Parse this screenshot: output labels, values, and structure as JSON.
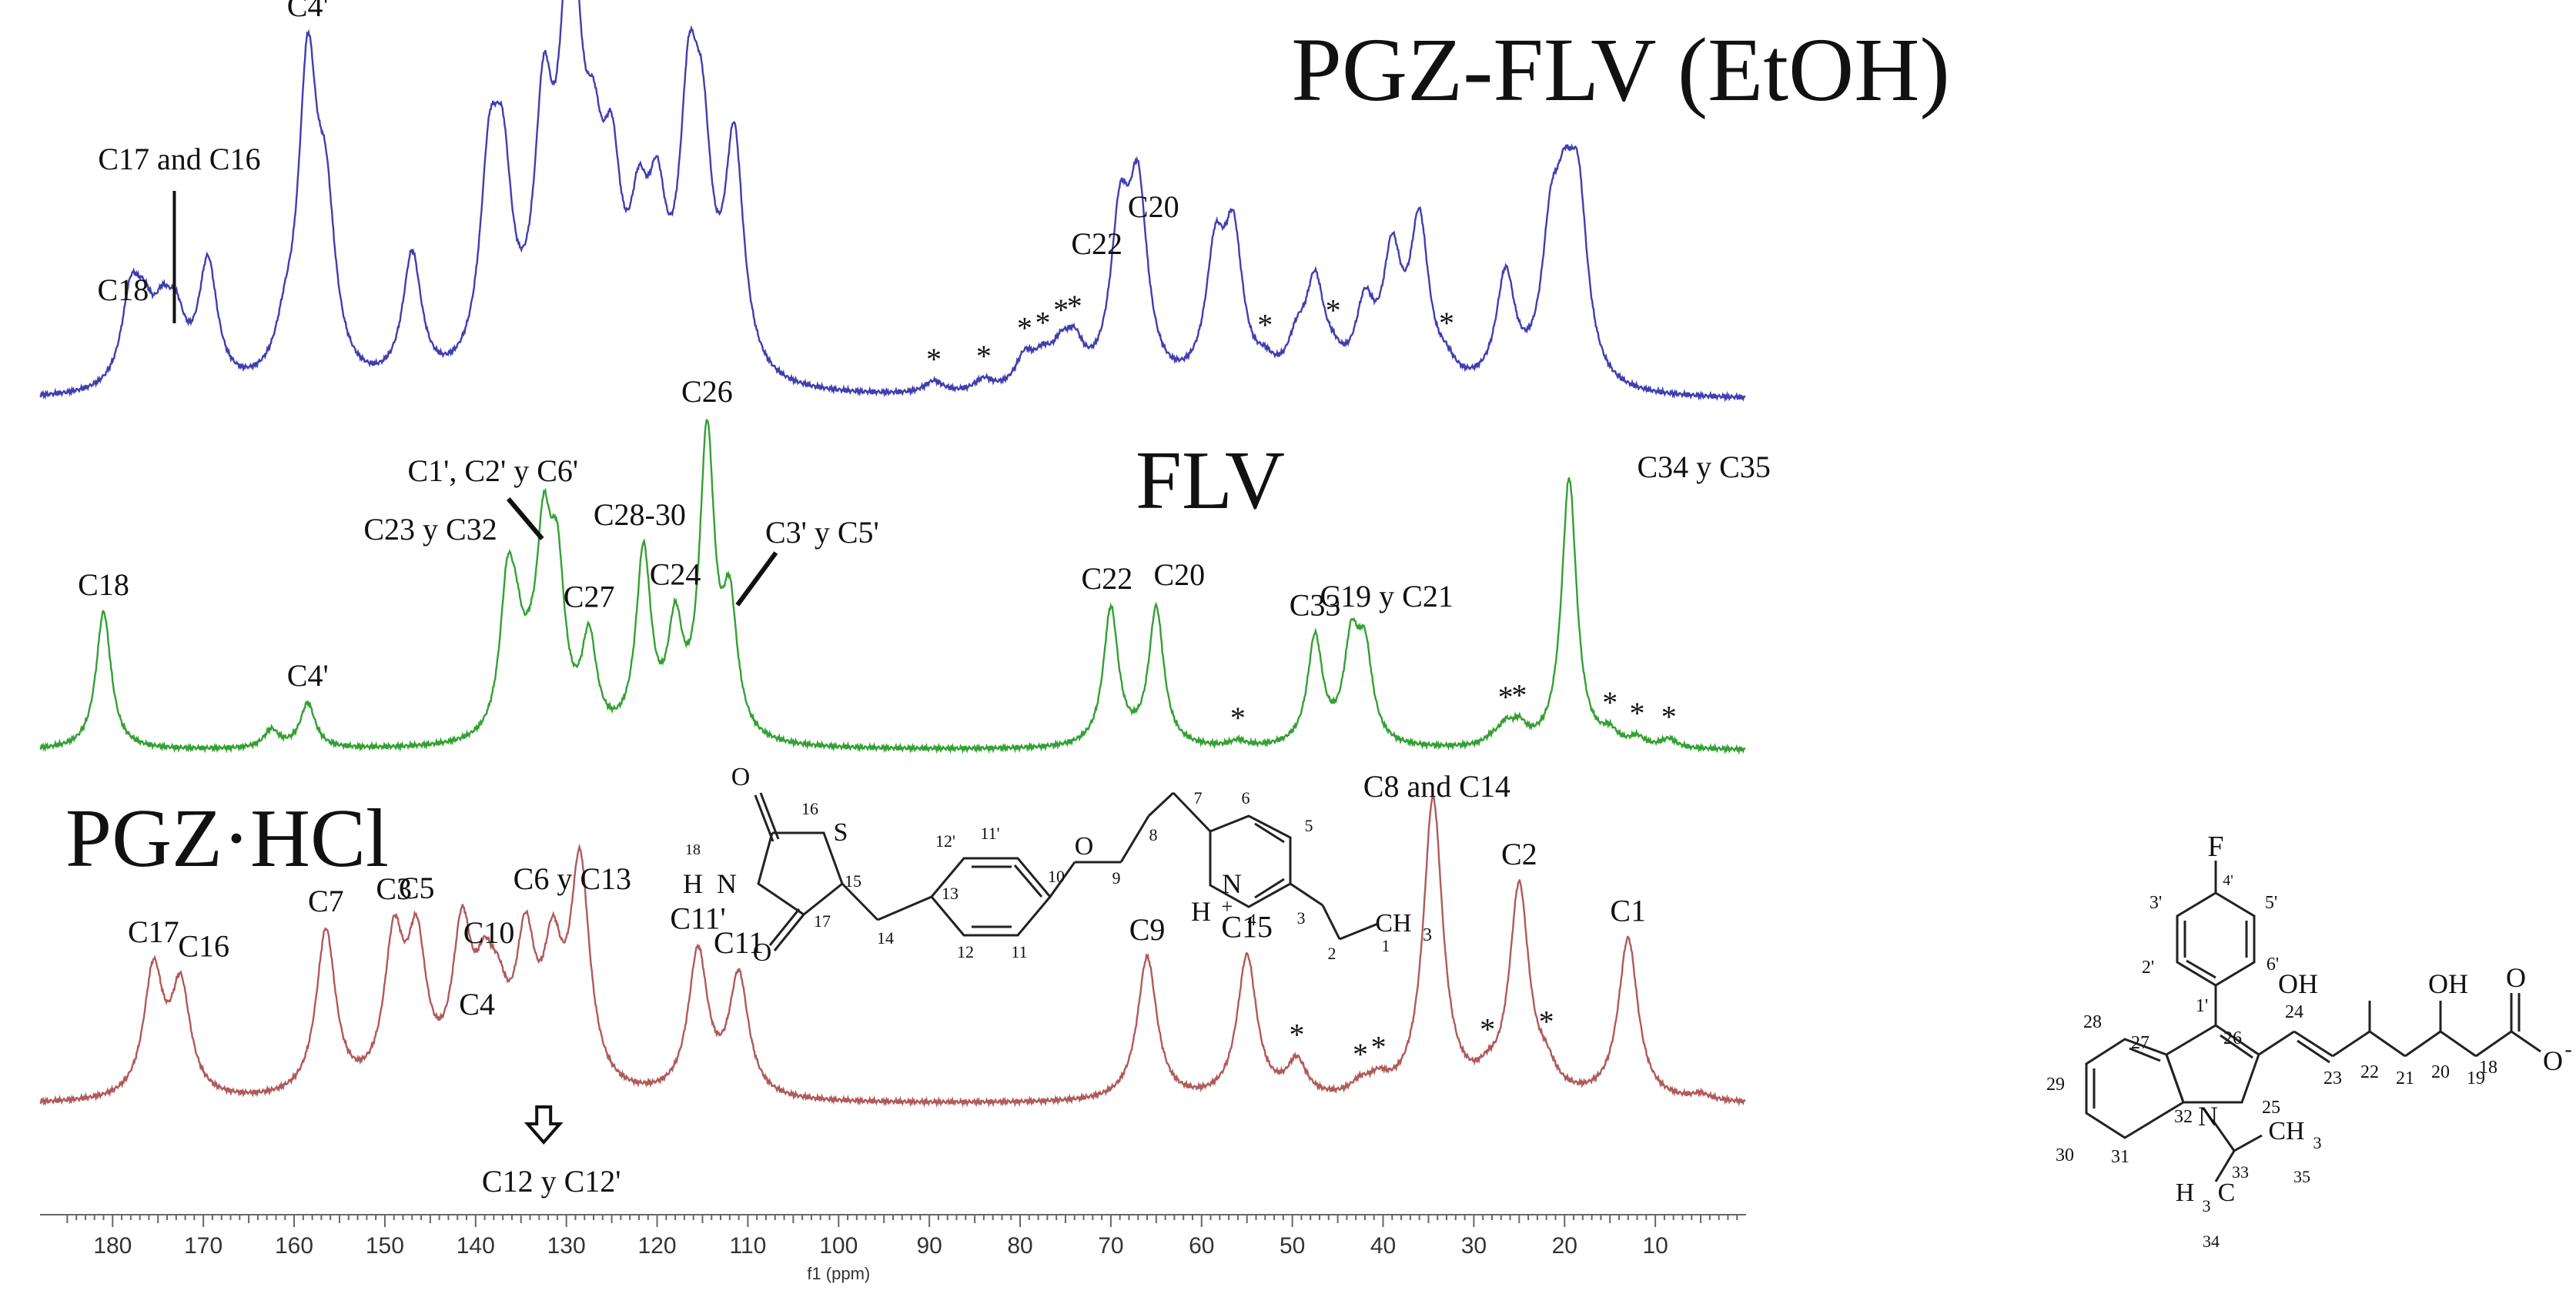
{
  "chart_data": {
    "type": "line",
    "xlabel": "f1 (ppm)",
    "xlim": [
      188,
      0
    ],
    "x_ticks": [
      180,
      170,
      160,
      150,
      140,
      130,
      120,
      110,
      100,
      90,
      80,
      70,
      60,
      50,
      40,
      30,
      20,
      10
    ],
    "colors": {
      "top": "#3f3fb0",
      "middle": "#34a034",
      "bottom": "#b05a5a"
    },
    "spectra": [
      {
        "key": "top",
        "title": "PGZ-FLV (EtOH)",
        "peaks": [
          [
            178,
            0.28
          ],
          [
            176.5,
            0.18
          ],
          [
            174.5,
            0.18
          ],
          [
            173,
            0.18
          ],
          [
            169.5,
            0.4
          ],
          [
            161,
            0.12
          ],
          [
            158.5,
            1.0
          ],
          [
            156.5,
            0.5
          ],
          [
            147,
            0.42
          ],
          [
            138.5,
            0.6
          ],
          [
            137,
            0.56
          ],
          [
            132.5,
            0.77
          ],
          [
            130,
            0.72
          ],
          [
            129,
            0.66
          ],
          [
            127,
            0.48
          ],
          [
            125,
            0.54
          ],
          [
            122,
            0.4
          ],
          [
            120,
            0.45
          ],
          [
            116.5,
            0.78
          ],
          [
            115,
            0.6
          ],
          [
            111.5,
            0.75
          ],
          [
            89.5,
            0.04
          ],
          [
            84,
            0.04
          ],
          [
            79.5,
            0.1
          ],
          [
            77.5,
            0.08
          ],
          [
            75.5,
            0.1
          ],
          [
            74,
            0.12
          ],
          [
            69,
            0.5
          ],
          [
            67,
            0.6
          ],
          [
            58.5,
            0.4
          ],
          [
            56.5,
            0.46
          ],
          [
            53,
            0.05
          ],
          [
            49.5,
            0.12
          ],
          [
            47.5,
            0.32
          ],
          [
            45.5,
            0.05
          ],
          [
            42,
            0.24
          ],
          [
            39,
            0.4
          ],
          [
            36,
            0.52
          ],
          [
            33,
            0.05
          ],
          [
            26.5,
            0.36
          ],
          [
            21.5,
            0.42
          ],
          [
            20,
            0.4
          ],
          [
            18.5,
            0.55
          ]
        ],
        "annotations": [
          {
            "label": "C4'",
            "ppm": 158.5
          },
          {
            "label": "C17 and C16",
            "ppm": 173.5
          },
          {
            "label": "C18",
            "ppm": 178
          },
          {
            "label": "C22",
            "ppm": 69
          },
          {
            "label": "C20",
            "ppm": 67
          },
          {
            "label": "*",
            "ppm": 89.5
          },
          {
            "label": "*",
            "ppm": 84
          },
          {
            "label": "*",
            "ppm": 79.5
          },
          {
            "label": "*",
            "ppm": 77.5
          },
          {
            "label": "*",
            "ppm": 75.5
          },
          {
            "label": "*",
            "ppm": 74
          },
          {
            "label": "*",
            "ppm": 53
          },
          {
            "label": "*",
            "ppm": 45.5
          },
          {
            "label": "*",
            "ppm": 33
          }
        ]
      },
      {
        "key": "middle",
        "title": "FLV",
        "peaks": [
          [
            181,
            0.46
          ],
          [
            162.5,
            0.06
          ],
          [
            158.5,
            0.15
          ],
          [
            136.5,
            0.46
          ],
          [
            135.5,
            0.22
          ],
          [
            134,
            0.1
          ],
          [
            132.5,
            0.6
          ],
          [
            131,
            0.5
          ],
          [
            127.5,
            0.32
          ],
          [
            121.5,
            0.62
          ],
          [
            118,
            0.35
          ],
          [
            114.5,
            1.0
          ],
          [
            112,
            0.42
          ],
          [
            70,
            0.46
          ],
          [
            65,
            0.46
          ],
          [
            56,
            0.02
          ],
          [
            47.5,
            0.36
          ],
          [
            43.5,
            0.32
          ],
          [
            42,
            0.29
          ],
          [
            28,
            0.02
          ],
          [
            26.5,
            0.06
          ],
          [
            25,
            0.06
          ],
          [
            19.5,
            0.9
          ],
          [
            15,
            0.04
          ],
          [
            12,
            0.03
          ],
          [
            8.5,
            0.03
          ]
        ],
        "annotations": [
          {
            "label": "C18",
            "ppm": 181
          },
          {
            "label": "C4'",
            "ppm": 158.5
          },
          {
            "label": "C23 y C32",
            "ppm": 136.5
          },
          {
            "label": "C1', C2' y C6'",
            "ppm": 133
          },
          {
            "label": "C27",
            "ppm": 127.5
          },
          {
            "label": "C28-30",
            "ppm": 121.5
          },
          {
            "label": "C24",
            "ppm": 118
          },
          {
            "label": "C26",
            "ppm": 114.5
          },
          {
            "label": "C3' y C5'",
            "ppm": 112
          },
          {
            "label": "C22",
            "ppm": 70
          },
          {
            "label": "C20",
            "ppm": 65
          },
          {
            "label": "C33",
            "ppm": 47.5
          },
          {
            "label": "C19 y C21",
            "ppm": 43
          },
          {
            "label": "C34 y C35",
            "ppm": 19.5
          },
          {
            "label": "*",
            "ppm": 56
          },
          {
            "label": "*",
            "ppm": 26.5
          },
          {
            "label": "*",
            "ppm": 25
          },
          {
            "label": "*",
            "ppm": 15
          },
          {
            "label": "*",
            "ppm": 12
          },
          {
            "label": "*",
            "ppm": 8.5
          }
        ]
      },
      {
        "key": "bottom",
        "title": "PGZ·HCl",
        "peaks": [
          [
            175.5,
            0.42
          ],
          [
            172.5,
            0.36
          ],
          [
            156.5,
            0.55
          ],
          [
            149,
            0.48
          ],
          [
            146.5,
            0.46
          ],
          [
            141.5,
            0.5
          ],
          [
            139,
            0.28
          ],
          [
            137.5,
            0.2
          ],
          [
            134.5,
            0.46
          ],
          [
            131.5,
            0.4
          ],
          [
            128.5,
            0.74
          ],
          [
            115.5,
            0.48
          ],
          [
            111,
            0.4
          ],
          [
            66,
            0.48
          ],
          [
            55,
            0.48
          ],
          [
            49.5,
            0.12
          ],
          [
            42.5,
            0.04
          ],
          [
            40.5,
            0.05
          ],
          [
            34.5,
            1.0
          ],
          [
            28.5,
            0.04
          ],
          [
            25,
            0.7
          ],
          [
            22,
            0.07
          ],
          [
            13,
            0.54
          ],
          [
            5,
            0.02
          ]
        ],
        "annotations": [
          {
            "label": "C17",
            "ppm": 175.5
          },
          {
            "label": "C16",
            "ppm": 172.5
          },
          {
            "label": "C7",
            "ppm": 156.5
          },
          {
            "label": "C3",
            "ppm": 149
          },
          {
            "label": "C5",
            "ppm": 146.5
          },
          {
            "label": "C10",
            "ppm": 141.5
          },
          {
            "label": "C4",
            "ppm": 139
          },
          {
            "label": "C6 y C13",
            "ppm": 128.5
          },
          {
            "label": "C11'",
            "ppm": 115.5
          },
          {
            "label": "C11",
            "ppm": 111
          },
          {
            "label": "C9",
            "ppm": 66
          },
          {
            "label": "C15",
            "ppm": 55
          },
          {
            "label": "C8 and C14",
            "ppm": 34.5
          },
          {
            "label": "C2",
            "ppm": 25
          },
          {
            "label": "C1",
            "ppm": 13
          },
          {
            "label": "C12 y C12'",
            "ppm": 132.5
          },
          {
            "label": "*",
            "ppm": 49.5
          },
          {
            "label": "*",
            "ppm": 42.5
          },
          {
            "label": "*",
            "ppm": 40.5
          },
          {
            "label": "*",
            "ppm": 28.5
          },
          {
            "label": "*",
            "ppm": 22
          }
        ]
      }
    ]
  },
  "structures": {
    "pgz": {
      "atoms": [
        "O",
        "S",
        "O",
        "H",
        "N",
        "18",
        "16",
        "15",
        "17",
        "14",
        "12'",
        "11'",
        "13",
        "12",
        "11",
        "10",
        "O",
        "9",
        "8",
        "7",
        "6",
        "5",
        "4",
        "3",
        "2",
        "1",
        "N",
        "H",
        "+",
        "CH",
        "3"
      ]
    },
    "flv": {
      "atoms": [
        "F",
        "4'",
        "3'",
        "5'",
        "2'",
        "6'",
        "1'",
        "28",
        "27",
        "26",
        "24",
        "OH",
        "OH",
        "O",
        "O",
        "-",
        "29",
        "30",
        "31",
        "32",
        "25",
        "23",
        "22",
        "21",
        "20",
        "19",
        "18",
        "N",
        "CH",
        "3",
        "33",
        "35",
        "H",
        "3",
        "C",
        "34"
      ]
    }
  }
}
